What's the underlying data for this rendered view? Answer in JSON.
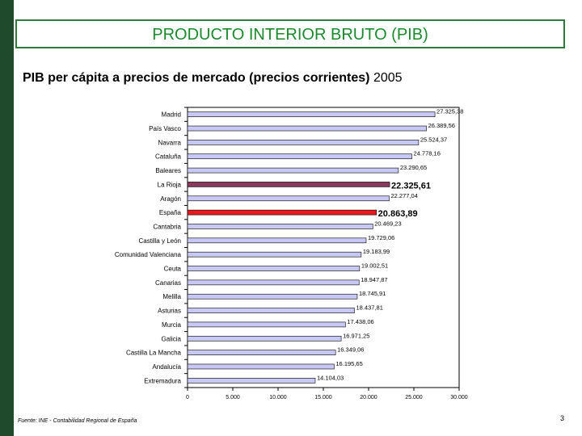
{
  "slide": {
    "title": "PRODUCTO INTERIOR BRUTO (PIB)",
    "subtitle_main": "PIB per cápita  a precios de mercado (precios corrientes)",
    "subtitle_year": "2005",
    "source": "Fuente: INE - Contabilidad Regional de España",
    "page_number": "3"
  },
  "colors": {
    "bar_default": "#c8c8f5",
    "bar_rioja": "#8b3a5e",
    "bar_espana": "#e8191e",
    "frame": "#1f4a2c",
    "title": "#1b8a2e"
  },
  "chart_data": {
    "type": "bar",
    "orientation": "horizontal",
    "title": "",
    "xlabel": "",
    "ylabel": "",
    "xlim": [
      0,
      30000
    ],
    "xticks": [
      0,
      5000,
      10000,
      15000,
      20000,
      25000,
      30000
    ],
    "xtick_labels": [
      "0",
      "5.000",
      "10.000",
      "15.000",
      "20.000",
      "25.000",
      "30.000"
    ],
    "categories": [
      "Madrid",
      "País Vasco",
      "Navarra",
      "Cataluña",
      "Baleares",
      "La Rioja",
      "Aragón",
      "España",
      "Cantabria",
      "Castilla y León",
      "Comunidad Valenciana",
      "Ceuta",
      "Canarias",
      "Melilla",
      "Asturias",
      "Murcia",
      "Galicia",
      "Castilla La Mancha",
      "Andalucía",
      "Extremadura"
    ],
    "values": [
      27325.38,
      26389.56,
      25524.37,
      24778.16,
      23290.65,
      22325.61,
      22277.04,
      20863.89,
      20469.23,
      19729.06,
      19183.99,
      19002.51,
      18947.87,
      18745.91,
      18437.81,
      17438.06,
      16971.25,
      16349.06,
      16195.65,
      14104.03
    ],
    "value_labels": [
      "27.325,38",
      "26.389,56",
      "25.524,37",
      "24.778,16",
      "23.290,65",
      "22.325,61",
      "22.277,04",
      "20.863,89",
      "20.469,23",
      "19.729,06",
      "19.183,99",
      "19.002,51",
      "18.947,87",
      "18.745,91",
      "18.437,81",
      "17.438,06",
      "16.971,25",
      "16.349,06",
      "16.195,65",
      "14.104,03"
    ],
    "highlight": {
      "La Rioja": "#8b3a5e",
      "España": "#e8191e"
    },
    "grid": false,
    "legend": "none"
  }
}
